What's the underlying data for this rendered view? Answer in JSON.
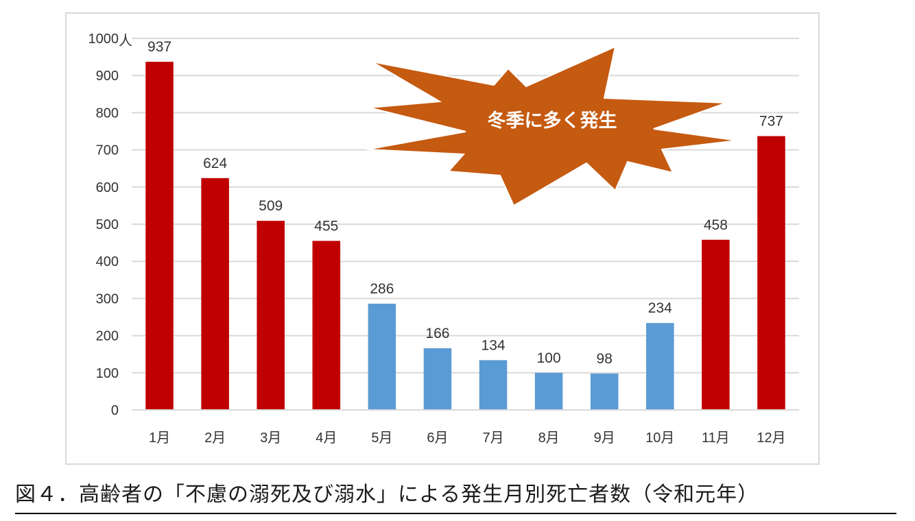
{
  "caption": "図４．高齢者の「不慮の溺死及び溺水」による発生月別死亡者数（令和元年）",
  "chart_data": {
    "type": "bar",
    "categories": [
      "1月",
      "2月",
      "3月",
      "4月",
      "5月",
      "6月",
      "7月",
      "8月",
      "9月",
      "10月",
      "11月",
      "12月"
    ],
    "values": [
      937,
      624,
      509,
      455,
      286,
      166,
      134,
      100,
      98,
      234,
      458,
      737
    ],
    "bar_colors": [
      "#c00000",
      "#c00000",
      "#c00000",
      "#c00000",
      "#5b9bd5",
      "#5b9bd5",
      "#5b9bd5",
      "#5b9bd5",
      "#5b9bd5",
      "#5b9bd5",
      "#c00000",
      "#c00000"
    ],
    "ylim": [
      0,
      1000
    ],
    "yticks": [
      0,
      100,
      200,
      300,
      400,
      500,
      600,
      700,
      800,
      900,
      1000
    ],
    "yunit": "人",
    "grid": true,
    "legend": "none",
    "annotation": "冬季に多く発生",
    "annotation_color": "#c55a11"
  }
}
